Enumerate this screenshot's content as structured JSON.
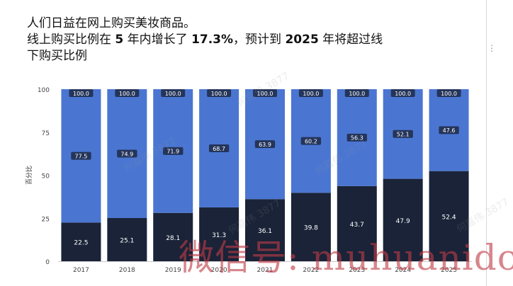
{
  "title": {
    "line1": "人们日益在网上购买美妆商品。",
    "line2_a": "线上购买比例在 ",
    "line2_b": "5",
    "line2_c": " 年内增长了 ",
    "line2_d": "17.3%",
    "line2_e": "，预计到 ",
    "line2_f": "2025",
    "line2_g": " 年将超过线",
    "line3": "下购买比例"
  },
  "chart_data": {
    "type": "bar",
    "stacked": true,
    "categories": [
      "2017",
      "2018",
      "2019",
      "2020",
      "2021",
      "2022",
      "2023",
      "2024",
      "2025"
    ],
    "series": [
      {
        "values": [
          22.5,
          25.1,
          28.1,
          31.3,
          36.1,
          39.8,
          43.7,
          47.9,
          52.4
        ]
      },
      {
        "values": [
          77.5,
          74.9,
          71.9,
          68.7,
          63.9,
          60.2,
          56.3,
          52.1,
          47.6
        ]
      }
    ],
    "totals": [
      "100.0",
      "100.0",
      "100.0",
      "100.0",
      "100.0",
      "100.0",
      "100.0",
      "100.0",
      "100.0"
    ],
    "ylabel": "百分比",
    "yticks": [
      0,
      25,
      50,
      75,
      100
    ],
    "ylim": [
      0,
      100
    ],
    "grid": false,
    "colors": [
      "#1a2338",
      "#4a76d2"
    ],
    "label_bg": "#1e2a45"
  },
  "watermark": "何嘉伟 3877",
  "overlay_text": "微信号: muhuanidc"
}
